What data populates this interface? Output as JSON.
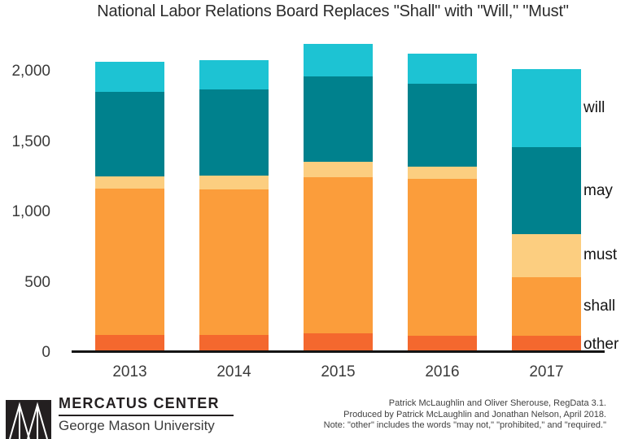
{
  "title": "National Labor Relations Board Replaces \"Shall\" with \"Will,\" \"Must\"",
  "chart_data": {
    "type": "bar",
    "stacked": true,
    "title": "National Labor Relations Board Replaces \"Shall\" with \"Will,\" \"Must\"",
    "xlabel": "",
    "ylabel": "",
    "categories": [
      "2013",
      "2014",
      "2015",
      "2016",
      "2017"
    ],
    "series": [
      {
        "name": "other",
        "color": "#f4682e",
        "values": [
          130,
          130,
          140,
          120,
          120
        ]
      },
      {
        "name": "shall",
        "color": "#fb9d3b",
        "values": [
          1035,
          1030,
          1110,
          1115,
          420
        ]
      },
      {
        "name": "must",
        "color": "#fcce80",
        "values": [
          90,
          100,
          110,
          90,
          305
        ]
      },
      {
        "name": "may",
        "color": "#00818d",
        "values": [
          600,
          615,
          605,
          590,
          615
        ]
      },
      {
        "name": "will",
        "color": "#1dc3d3",
        "values": [
          215,
          205,
          230,
          210,
          555
        ]
      }
    ],
    "y_ticks": [
      "0",
      "500",
      "1,000",
      "1,500",
      "2,000"
    ],
    "y_tick_values": [
      0,
      500,
      1000,
      1500,
      2000
    ],
    "ylim": [
      0,
      2260
    ],
    "grid": false,
    "legend_position": "right-of-last-bar",
    "legend_labels_top_to_bottom": [
      "will",
      "may",
      "must",
      "shall",
      "other"
    ]
  },
  "footer": {
    "logo": {
      "name": "MERCATUS CENTER",
      "subtitle": "George Mason University"
    },
    "credits": [
      "Patrick McLaughlin and Oliver Sherouse, RegData 3.1.",
      "Produced by Patrick McLaughlin and Jonathan Nelson, April 2018.",
      "Note: \"other\" includes the words \"may not,\" \"prohibited,\" and \"required.\""
    ]
  }
}
